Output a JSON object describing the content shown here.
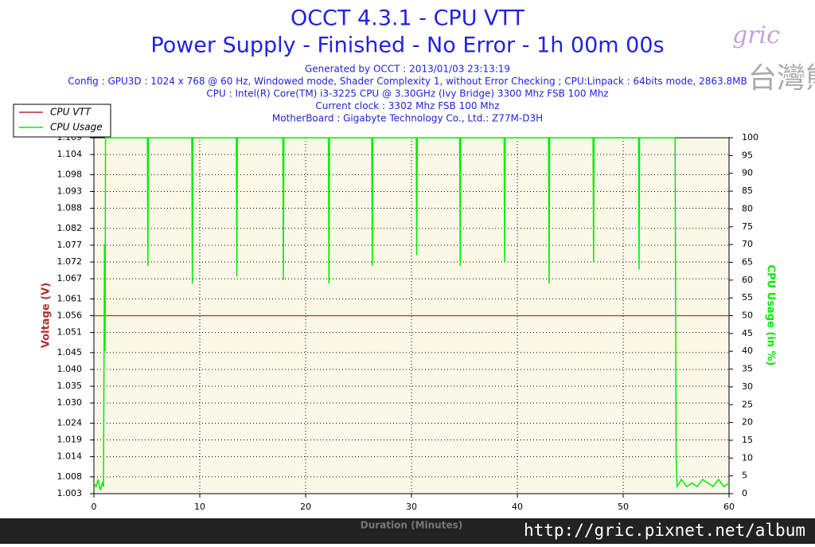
{
  "chart_data": {
    "type": "line",
    "title": "OCCT 4.3.1 - CPU VTT",
    "subtitle": "Power Supply - Finished - No Error - 1h 00m 00s",
    "info": [
      "Generated by OCCT : 2013/01/03 23:13:19",
      "Config : GPU3D : 1024 x 768 @ 60 Hz, Windowed mode, Shader Complexity 1, without Error Checking ; CPU:Linpack : 64bits mode, 2863.8MB",
      "CPU : Intel(R) Core(TM) i3-3225 CPU @ 3.30GHz (Ivy Bridge) 3300 Mhz FSB 100 Mhz",
      "Current clock : 3302 Mhz FSB 100 Mhz",
      "MotherBoard : Gigabyte Technology Co., Ltd.: Z77M-D3H"
    ],
    "xlabel": "Duration (Minutes)",
    "ylabel": "Voltage (V)",
    "y2label": "CPU Usage (in %)",
    "xlim": [
      0,
      60
    ],
    "xticks": [
      0,
      10,
      20,
      30,
      40,
      50,
      60
    ],
    "ylim": [
      1.003,
      1.109
    ],
    "yticks": [
      1.003,
      1.008,
      1.014,
      1.019,
      1.024,
      {
        "value": 1.03,
        "label": "1.030"
      },
      1.035,
      {
        "value": 1.04,
        "label": "1.040"
      },
      1.045,
      1.051,
      1.056,
      1.061,
      1.067,
      1.072,
      1.077,
      1.082,
      1.088,
      1.093,
      1.098,
      1.104,
      1.109
    ],
    "y2lim": [
      0,
      100
    ],
    "y2ticks": [
      0,
      5,
      10,
      15,
      20,
      25,
      30,
      35,
      40,
      45,
      50,
      55,
      60,
      65,
      70,
      75,
      80,
      85,
      90,
      95,
      100
    ],
    "grid": true,
    "series": [
      {
        "name": "CPU VTT",
        "color": "#b03030",
        "x": [
          0,
          60
        ],
        "values": [
          1.056,
          1.056
        ]
      },
      {
        "name": "CPU Usage",
        "color": "#00ee00",
        "axis": "y2",
        "x": [
          0,
          0.2,
          0.4,
          0.6,
          0.8,
          0.9,
          1.0,
          1.05,
          1.1,
          5.05,
          5.1,
          5.15,
          9.25,
          9.3,
          9.35,
          13.45,
          13.5,
          13.55,
          17.85,
          17.9,
          17.95,
          22.15,
          22.2,
          22.25,
          26.25,
          26.3,
          26.35,
          30.45,
          30.5,
          30.55,
          34.55,
          34.6,
          34.65,
          38.75,
          38.8,
          38.85,
          42.95,
          43.0,
          43.05,
          47.15,
          47.2,
          47.25,
          51.45,
          51.5,
          51.55,
          54.9,
          55.0,
          55.1,
          55.5,
          56,
          56.5,
          57,
          57.5,
          58,
          58.5,
          59,
          59.5,
          60
        ],
        "values": [
          3,
          2,
          4,
          1,
          3,
          2,
          70,
          40,
          100,
          100,
          64,
          100,
          100,
          59,
          100,
          100,
          61,
          100,
          100,
          60,
          100,
          100,
          59,
          100,
          100,
          64,
          100,
          100,
          67,
          100,
          100,
          64,
          100,
          100,
          65,
          100,
          100,
          59,
          100,
          100,
          65,
          100,
          100,
          63,
          100,
          100,
          10,
          2,
          4,
          2,
          3,
          2,
          4,
          3,
          2,
          4,
          2,
          3
        ]
      }
    ],
    "legend": "top-left",
    "watermark": "http://gric.pixnet.net/album",
    "logo": "gric",
    "logo_sub": "台灣熊"
  }
}
